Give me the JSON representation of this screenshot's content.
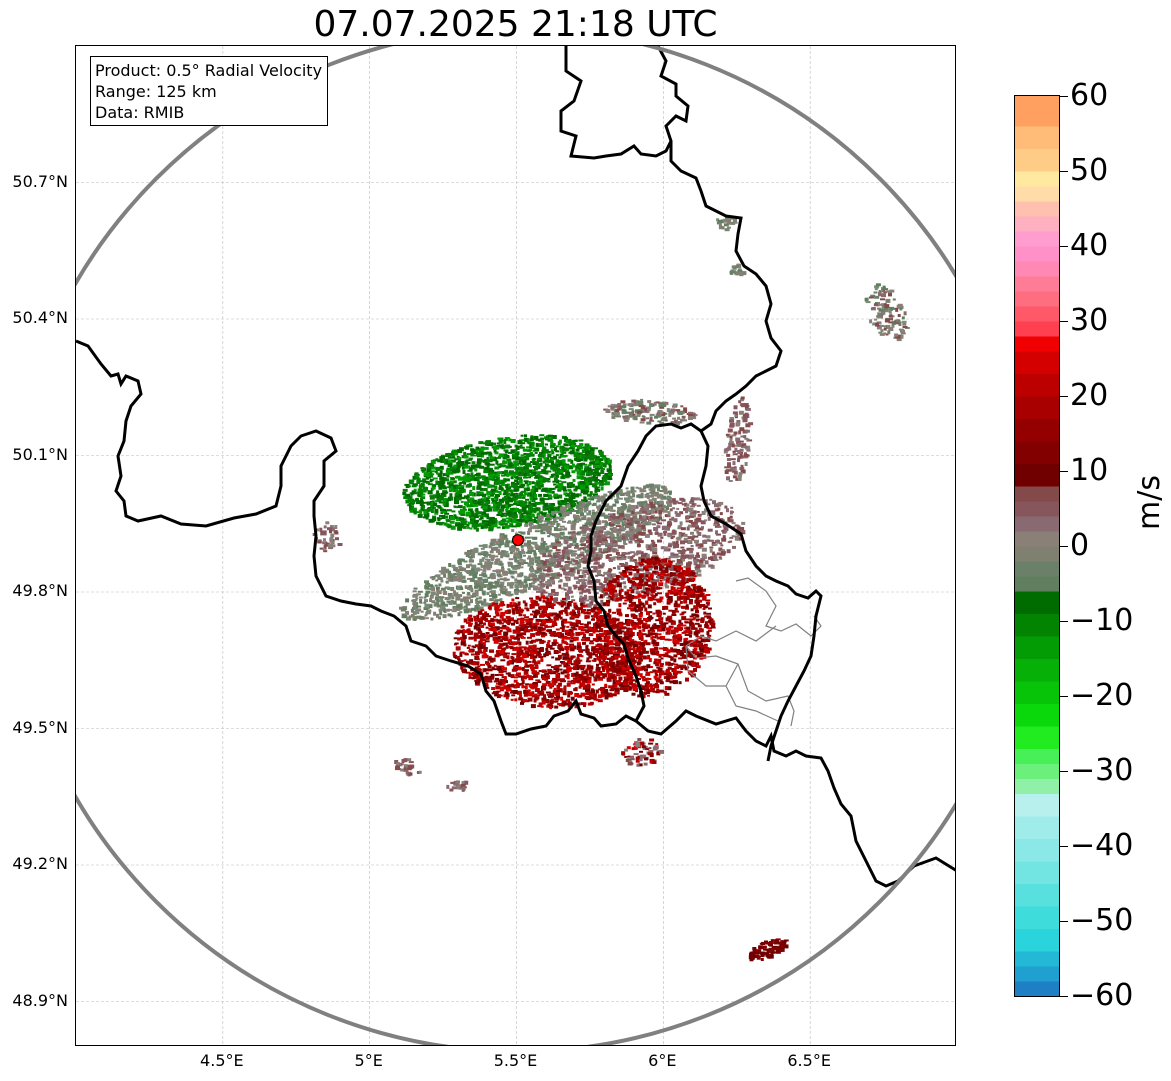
{
  "title": "07.07.2025 21:18 UTC",
  "info": {
    "product": "Product: 0.5° Radial Velocity",
    "range": "Range: 125 km",
    "data": "Data: RMIB"
  },
  "map": {
    "lon_range": [
      4.0,
      7.0
    ],
    "lat_range": [
      48.8,
      51.0
    ],
    "lon_ticks": [
      {
        "value": 4.5,
        "label": "4.5°E"
      },
      {
        "value": 5.0,
        "label": "5°E"
      },
      {
        "value": 5.5,
        "label": "5.5°E"
      },
      {
        "value": 6.0,
        "label": "6°E"
      },
      {
        "value": 6.5,
        "label": "6.5°E"
      }
    ],
    "lat_ticks": [
      {
        "value": 48.9,
        "label": "48.9°N"
      },
      {
        "value": 49.2,
        "label": "49.2°N"
      },
      {
        "value": 49.5,
        "label": "49.5°N"
      },
      {
        "value": 49.8,
        "label": "49.8°N"
      },
      {
        "value": 50.1,
        "label": "50.1°N"
      },
      {
        "value": 50.4,
        "label": "50.4°N"
      },
      {
        "value": 50.7,
        "label": "50.7°N"
      }
    ],
    "radar_site": {
      "lon": 5.505,
      "lat": 49.914
    },
    "range_ring_km": 125,
    "colors": {
      "border": "#000000",
      "admin_border": "#808080",
      "range_ring": "#808080",
      "site_marker": "#ff0000",
      "grid": "#bbbbbb"
    }
  },
  "colorbar": {
    "unit": "m/s",
    "vmin": -60,
    "vmax": 60,
    "ticks": [
      {
        "value": 60,
        "label": "60"
      },
      {
        "value": 50,
        "label": "50"
      },
      {
        "value": 40,
        "label": "40"
      },
      {
        "value": 30,
        "label": "30"
      },
      {
        "value": 20,
        "label": "20"
      },
      {
        "value": 10,
        "label": "10"
      },
      {
        "value": 0,
        "label": "0"
      },
      {
        "value": -10,
        "label": "−10"
      },
      {
        "value": -20,
        "label": "−20"
      },
      {
        "value": -30,
        "label": "−30"
      },
      {
        "value": -40,
        "label": "−40"
      },
      {
        "value": -50,
        "label": "−50"
      },
      {
        "value": -60,
        "label": "−60"
      }
    ],
    "bands": [
      {
        "from": -60,
        "to": -58,
        "color": "#1f7fc4"
      },
      {
        "from": -58,
        "to": -56,
        "color": "#20a0d0"
      },
      {
        "from": -56,
        "to": -54,
        "color": "#22b8d6"
      },
      {
        "from": -54,
        "to": -51,
        "color": "#2ad4dc"
      },
      {
        "from": -51,
        "to": -48,
        "color": "#3fdcdc"
      },
      {
        "from": -48,
        "to": -45,
        "color": "#58e0de"
      },
      {
        "from": -45,
        "to": -42,
        "color": "#72e4e2"
      },
      {
        "from": -42,
        "to": -39,
        "color": "#8ae8e6"
      },
      {
        "from": -39,
        "to": -36,
        "color": "#a0ecea"
      },
      {
        "from": -36,
        "to": -33,
        "color": "#b8f0ee"
      },
      {
        "from": -33,
        "to": -31,
        "color": "#90f0a8"
      },
      {
        "from": -31,
        "to": -29,
        "color": "#6cf07c"
      },
      {
        "from": -29,
        "to": -27,
        "color": "#48f058"
      },
      {
        "from": -27,
        "to": -24,
        "color": "#20ec20"
      },
      {
        "from": -24,
        "to": -21,
        "color": "#0ad80a"
      },
      {
        "from": -21,
        "to": -18,
        "color": "#08c408"
      },
      {
        "from": -18,
        "to": -15,
        "color": "#06b006"
      },
      {
        "from": -15,
        "to": -12,
        "color": "#049c04"
      },
      {
        "from": -12,
        "to": -9,
        "color": "#028402"
      },
      {
        "from": -9,
        "to": -6,
        "color": "#006c00"
      },
      {
        "from": -6,
        "to": -4,
        "color": "#5f7f5f"
      },
      {
        "from": -4,
        "to": -2,
        "color": "#6b8068"
      },
      {
        "from": -2,
        "to": 0,
        "color": "#808070"
      },
      {
        "from": 0,
        "to": 2,
        "color": "#8a8078"
      },
      {
        "from": 2,
        "to": 4,
        "color": "#8a6a72"
      },
      {
        "from": 4,
        "to": 6,
        "color": "#86565c"
      },
      {
        "from": 6,
        "to": 8,
        "color": "#844a4a"
      },
      {
        "from": 8,
        "to": 11,
        "color": "#700000"
      },
      {
        "from": 11,
        "to": 14,
        "color": "#820000"
      },
      {
        "from": 14,
        "to": 17,
        "color": "#940000"
      },
      {
        "from": 17,
        "to": 20,
        "color": "#a80000"
      },
      {
        "from": 20,
        "to": 23,
        "color": "#bc0000"
      },
      {
        "from": 23,
        "to": 26,
        "color": "#d40000"
      },
      {
        "from": 26,
        "to": 28,
        "color": "#f00000"
      },
      {
        "from": 28,
        "to": 30,
        "color": "#ff4050"
      },
      {
        "from": 30,
        "to": 32,
        "color": "#ff5868"
      },
      {
        "from": 32,
        "to": 34,
        "color": "#ff6e80"
      },
      {
        "from": 34,
        "to": 36,
        "color": "#ff7c96"
      },
      {
        "from": 36,
        "to": 38,
        "color": "#ff88b4"
      },
      {
        "from": 38,
        "to": 40,
        "color": "#ff90c8"
      },
      {
        "from": 40,
        "to": 42,
        "color": "#ff9cd0"
      },
      {
        "from": 42,
        "to": 44,
        "color": "#ffb0c0"
      },
      {
        "from": 44,
        "to": 46,
        "color": "#ffc0b0"
      },
      {
        "from": 46,
        "to": 48,
        "color": "#ffdca8"
      },
      {
        "from": 48,
        "to": 50,
        "color": "#ffe8a0"
      },
      {
        "from": 50,
        "to": 53,
        "color": "#ffcc88"
      },
      {
        "from": 53,
        "to": 56,
        "color": "#ffbb78"
      },
      {
        "from": 56,
        "to": 60,
        "color": "#ffa060"
      }
    ]
  }
}
